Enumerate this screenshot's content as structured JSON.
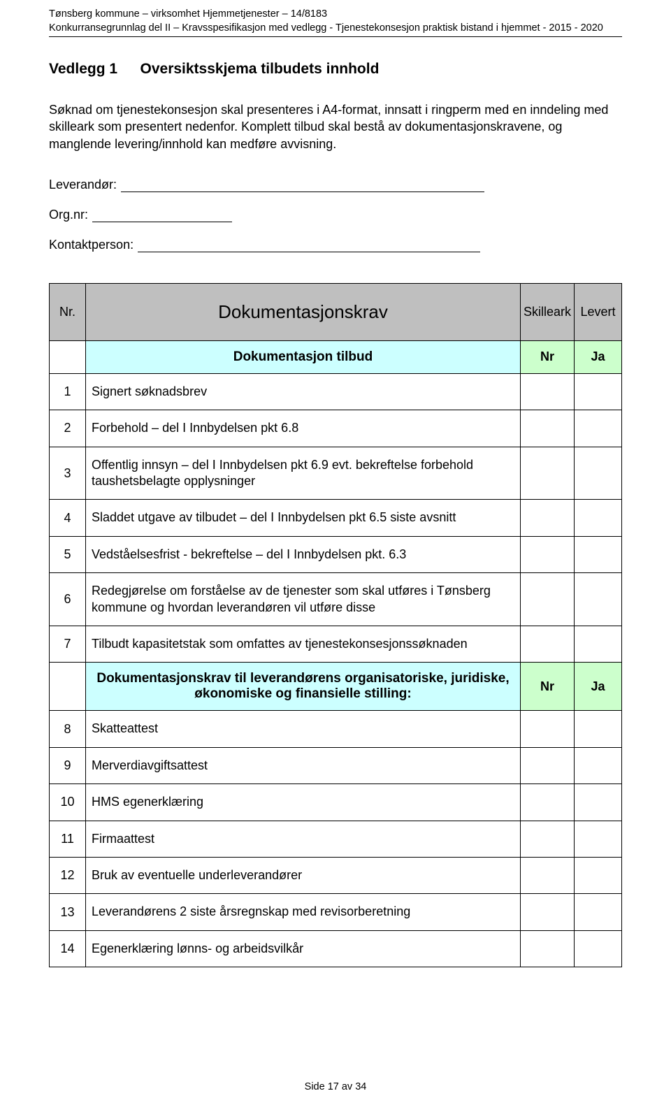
{
  "header": {
    "line1": "Tønsberg kommune – virksomhet Hjemmetjenester – 14/8183",
    "line2": "Konkurransegrunnlag del II – Kravsspesifikasjon med vedlegg - Tjenestekonsesjon praktisk bistand  i  hjemmet  - 2015 - 2020"
  },
  "title": {
    "label": "Vedlegg 1",
    "text": "Oversiktsskjema tilbudets innhold"
  },
  "intro": "Søknad om tjenestekonsesjon skal presenteres i A4-format, innsatt i ringperm med en inndeling med skilleark som presentert nedenfor. Komplett tilbud skal bestå av dokumentasjonskravene, og manglende levering/innhold kan medføre avvisning.",
  "fields": {
    "leverandor_label": "Leverandør:",
    "orgnr_label": "Org.nr:",
    "kontakt_label": "Kontaktperson:"
  },
  "table": {
    "header": {
      "nr": "Nr.",
      "main": "Dokumentasjonskrav",
      "skilleark": "Skilleark",
      "levert": "Levert"
    },
    "section1": {
      "title": "Dokumentasjon tilbud",
      "nr": "Nr",
      "ja": "Ja"
    },
    "rows1": [
      {
        "n": "1",
        "t": "Signert søknadsbrev"
      },
      {
        "n": "2",
        "t": "Forbehold – del I Innbydelsen pkt 6.8"
      },
      {
        "n": "3",
        "t": "Offentlig innsyn – del I Innbydelsen pkt 6.9 evt. bekreftelse forbehold taushetsbelagte opplysninger"
      },
      {
        "n": "4",
        "t": "Sladdet utgave av tilbudet – del I Innbydelsen pkt 6.5 siste avsnitt"
      },
      {
        "n": "5",
        "t": "Vedståelsesfrist - bekreftelse – del I Innbydelsen pkt. 6.3"
      },
      {
        "n": "6",
        "t": "Redegjørelse om forståelse av de tjenester som skal utføres i Tønsberg kommune og hvordan leverandøren vil utføre disse"
      },
      {
        "n": "7",
        "t": "Tilbudt kapasitetstak som omfattes av tjenestekonsesjonssøknaden"
      }
    ],
    "section2": {
      "title": "Dokumentasjonskrav til leverandørens organisatoriske, juridiske, økonomiske og finansielle stilling:",
      "nr": "Nr",
      "ja": "Ja"
    },
    "rows2": [
      {
        "n": "8",
        "t": "Skatteattest"
      },
      {
        "n": "9",
        "t": "Merverdiavgiftsattest"
      },
      {
        "n": "10",
        "t": "HMS egenerklæring"
      },
      {
        "n": "11",
        "t": "Firmaattest"
      },
      {
        "n": "12",
        "t": "Bruk av eventuelle underleverandører"
      },
      {
        "n": "13",
        "t": "Leverandørens 2 siste årsregnskap med revisorberetning"
      },
      {
        "n": "14",
        "t": "Egenerklæring lønns- og arbeidsvilkår"
      }
    ]
  },
  "footer": "Side 17 av 34",
  "colors": {
    "grey": "#bfbfbf",
    "cyan": "#ccffff",
    "green": "#ccffcc"
  }
}
